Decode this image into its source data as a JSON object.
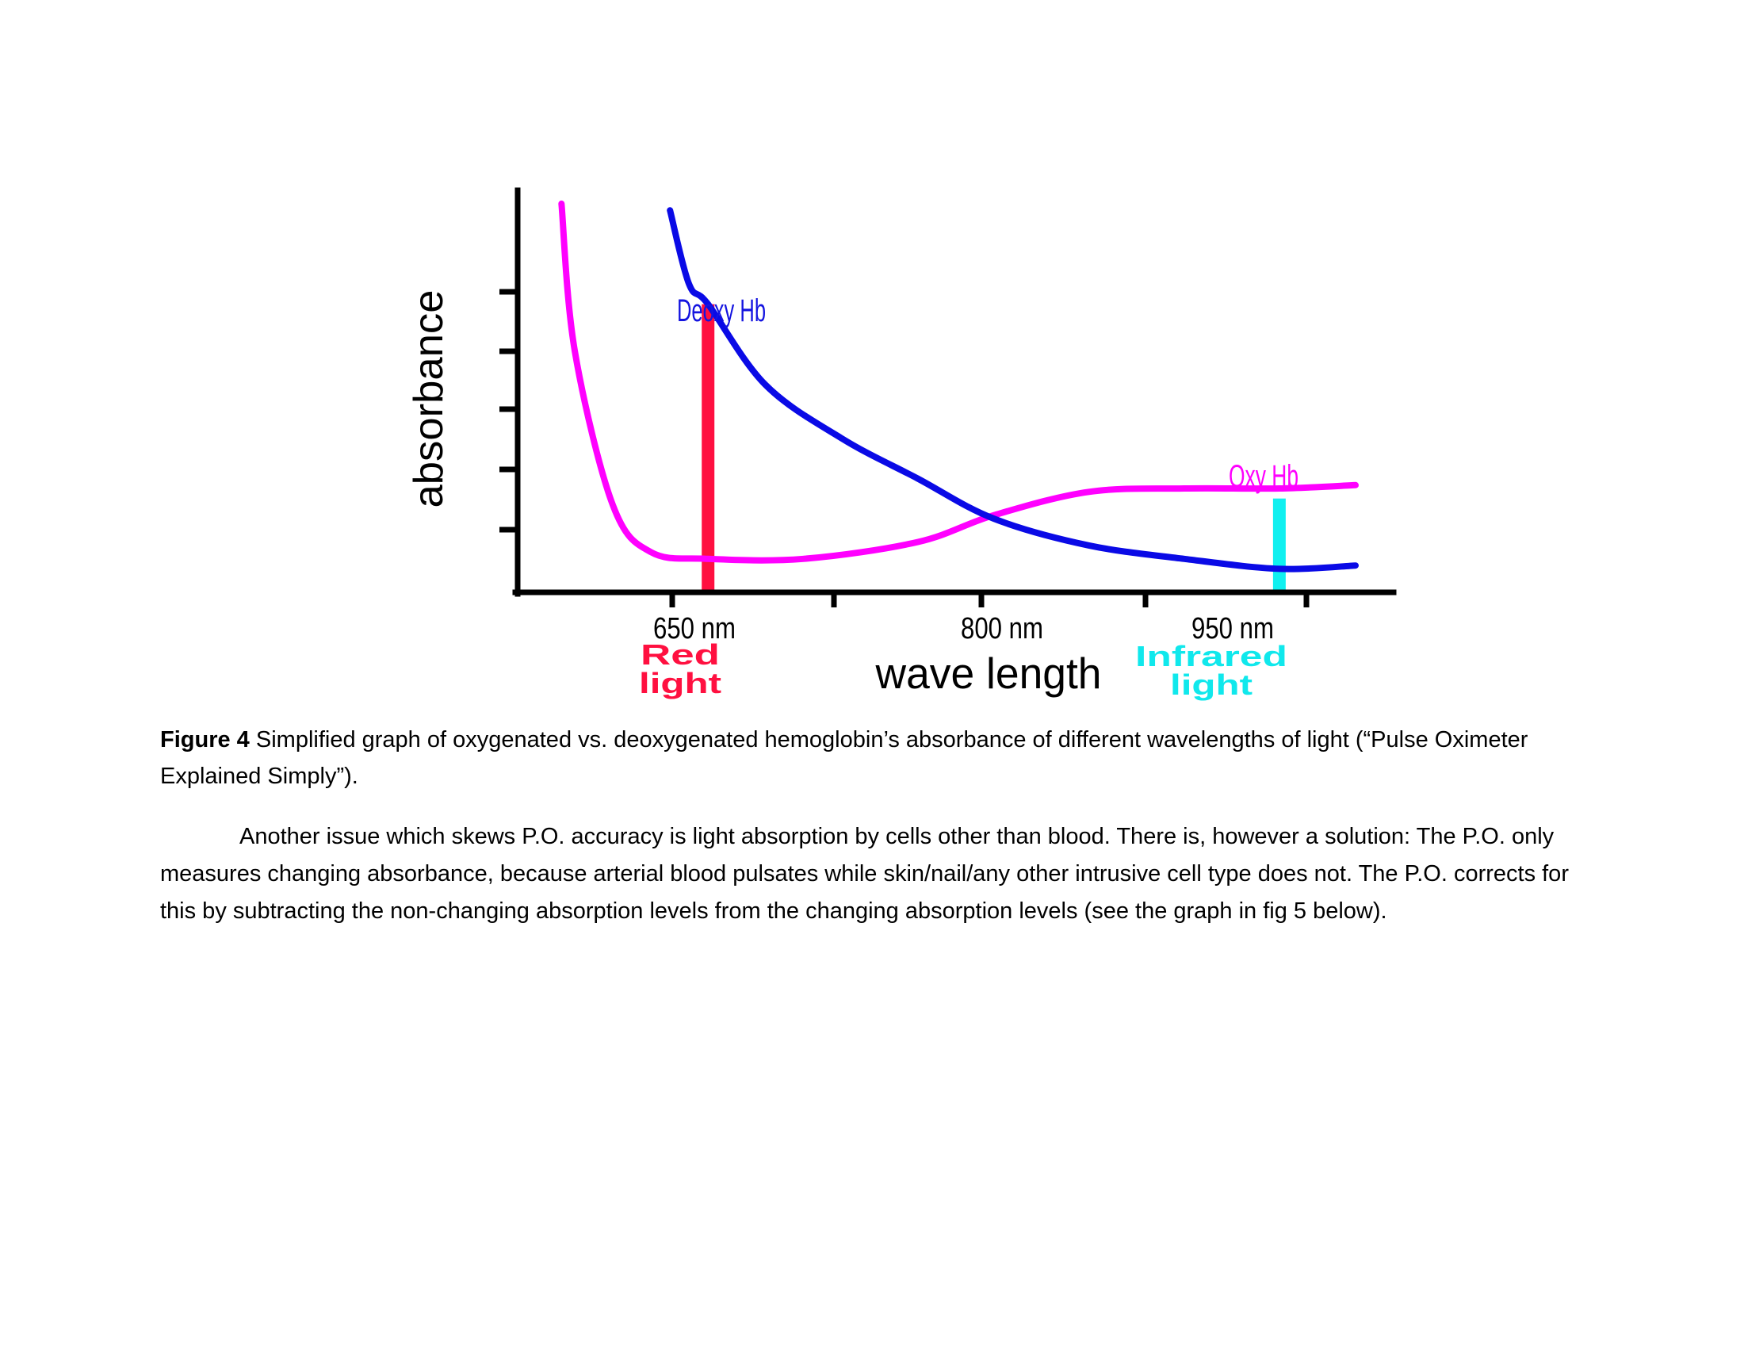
{
  "chart_data": {
    "type": "line",
    "title": "",
    "xlabel": "wave length",
    "ylabel": "absorbance",
    "x_range_nm": [
      550,
      1010
    ],
    "y_range": [
      0,
      6
    ],
    "tick_labels": [
      "650 nm",
      "800 nm",
      "950 nm"
    ],
    "series": [
      {
        "name": "Deoxy Hb",
        "color": "#0a0ae6",
        "points": [
          [
            630,
            5.7
          ],
          [
            640,
            4.6
          ],
          [
            650,
            4.3
          ],
          [
            680,
            3.1
          ],
          [
            720,
            2.3
          ],
          [
            760,
            1.7
          ],
          [
            800,
            1.1
          ],
          [
            850,
            0.7
          ],
          [
            900,
            0.5
          ],
          [
            950,
            0.35
          ],
          [
            990,
            0.4
          ]
        ]
      },
      {
        "name": "Oxy Hb",
        "color": "#ff00ff",
        "points": [
          [
            573,
            5.8
          ],
          [
            580,
            3.6
          ],
          [
            600,
            1.3
          ],
          [
            620,
            0.6
          ],
          [
            650,
            0.5
          ],
          [
            700,
            0.5
          ],
          [
            760,
            0.75
          ],
          [
            800,
            1.15
          ],
          [
            850,
            1.5
          ],
          [
            900,
            1.55
          ],
          [
            950,
            1.55
          ],
          [
            990,
            1.6
          ]
        ]
      }
    ],
    "bands": [
      {
        "label": "Red",
        "label2": "light",
        "x_nm": 650,
        "height": 4.3,
        "color": "#ff1040"
      },
      {
        "label": "Infrared",
        "label2": "light",
        "x_nm": 950,
        "height": 1.4,
        "color": "#10f0f0"
      }
    ]
  },
  "caption": {
    "label": "Figure 4",
    "text": " Simplified graph of oxygenated vs. deoxygenated hemoglobin’s absorbance of different wavelengths of light (“Pulse Oximeter Explained Simply”)."
  },
  "body_paragraph": "Another issue which skews P.O. accuracy is light absorption by cells other than blood. There is, however a solution: The P.O. only measures changing absorbance, because arterial blood pulsates while skin/nail/any other intrusive cell type does not. The P.O. corrects for this by subtracting the non-changing absorption levels from the changing absorption levels (see the graph in fig 5 below)."
}
